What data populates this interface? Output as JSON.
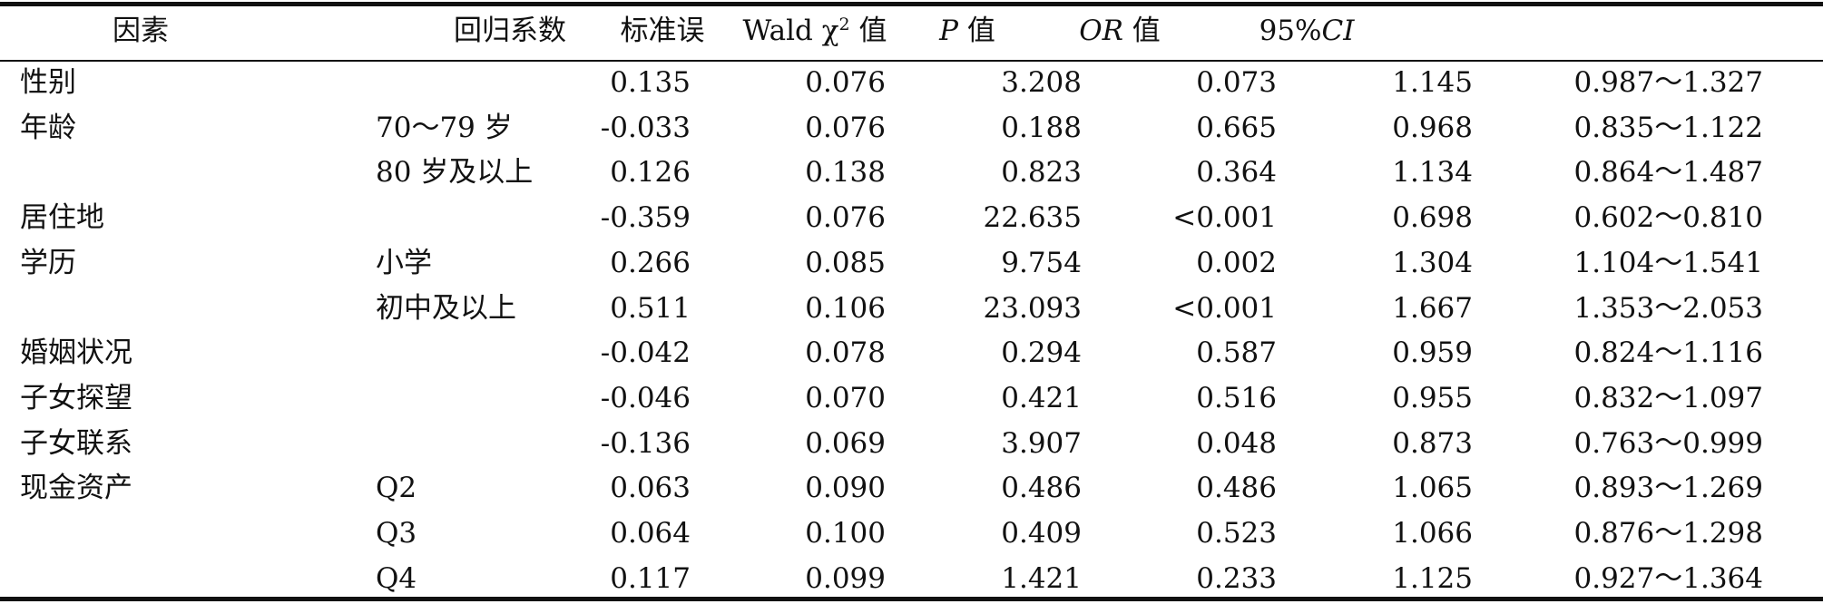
{
  "header": {
    "factor": "因素",
    "coef": "回归系数",
    "se": "标准误",
    "wald_prefix": "Wald χ",
    "wald_sup": "2",
    "wald_suffix": " 值",
    "p_it": "P",
    "p_suffix": " 值",
    "or_it": "OR",
    "or_suffix": " 值",
    "ci_prefix": "95%",
    "ci_it": "CI"
  },
  "rows": [
    {
      "factor": "性别",
      "level": "",
      "coef": "0.135",
      "se": "0.076",
      "wald": "3.208",
      "p": "0.073",
      "or": "1.145",
      "ci": "0.987～1.327"
    },
    {
      "factor": "年龄",
      "level": "70～79 岁",
      "coef": "-0.033",
      "se": "0.076",
      "wald": "0.188",
      "p": "0.665",
      "or": "0.968",
      "ci": "0.835～1.122"
    },
    {
      "factor": "",
      "level": "80 岁及以上",
      "coef": "0.126",
      "se": "0.138",
      "wald": "0.823",
      "p": "0.364",
      "or": "1.134",
      "ci": "0.864～1.487"
    },
    {
      "factor": "居住地",
      "level": "",
      "coef": "-0.359",
      "se": "0.076",
      "wald": "22.635",
      "p": "<0.001",
      "or": "0.698",
      "ci": "0.602～0.810"
    },
    {
      "factor": "学历",
      "level": "小学",
      "coef": "0.266",
      "se": "0.085",
      "wald": "9.754",
      "p": "0.002",
      "or": "1.304",
      "ci": "1.104～1.541"
    },
    {
      "factor": "",
      "level": "初中及以上",
      "coef": "0.511",
      "se": "0.106",
      "wald": "23.093",
      "p": "<0.001",
      "or": "1.667",
      "ci": "1.353～2.053"
    },
    {
      "factor": "婚姻状况",
      "level": "",
      "coef": "-0.042",
      "se": "0.078",
      "wald": "0.294",
      "p": "0.587",
      "or": "0.959",
      "ci": "0.824～1.116"
    },
    {
      "factor": "子女探望",
      "level": "",
      "coef": "-0.046",
      "se": "0.070",
      "wald": "0.421",
      "p": "0.516",
      "or": "0.955",
      "ci": "0.832～1.097"
    },
    {
      "factor": "子女联系",
      "level": "",
      "coef": "-0.136",
      "se": "0.069",
      "wald": "3.907",
      "p": "0.048",
      "or": "0.873",
      "ci": "0.763～0.999"
    },
    {
      "factor": "现金资产",
      "level": "Q2",
      "coef": "0.063",
      "se": "0.090",
      "wald": "0.486",
      "p": "0.486",
      "or": "1.065",
      "ci": "0.893～1.269"
    },
    {
      "factor": "",
      "level": "Q3",
      "coef": "0.064",
      "se": "0.100",
      "wald": "0.409",
      "p": "0.523",
      "or": "1.066",
      "ci": "0.876～1.298"
    },
    {
      "factor": "",
      "level": "Q4",
      "coef": "0.117",
      "se": "0.099",
      "wald": "1.421",
      "p": "0.233",
      "or": "1.125",
      "ci": "0.927～1.364"
    }
  ]
}
